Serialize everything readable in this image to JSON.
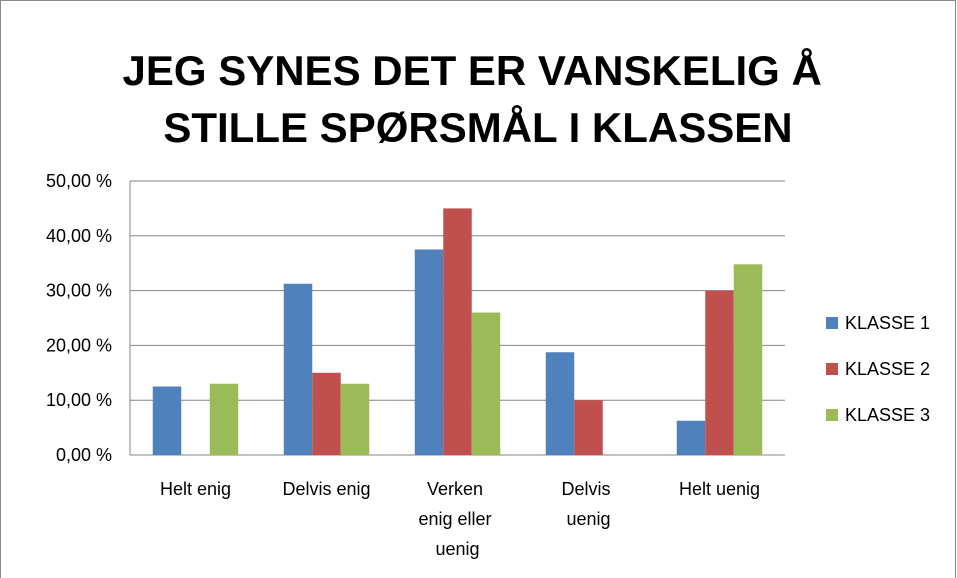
{
  "chart_data": {
    "type": "bar",
    "title": "JEG SYNES DET ER VANSKELIG Å STILLE SPØRSMÅL I KLASSEN",
    "categories": [
      "Helt enig",
      "Delvis enig",
      "Verken enig eller uenig",
      "Delvis uenig",
      "Helt uenig"
    ],
    "series": [
      {
        "name": "KLASSE 1",
        "color": "#4f81bd",
        "values": [
          12.5,
          31.25,
          37.5,
          18.75,
          6.25
        ]
      },
      {
        "name": "KLASSE 2",
        "color": "#c0504d",
        "values": [
          0,
          15,
          45,
          10,
          30
        ]
      },
      {
        "name": "KLASSE 3",
        "color": "#9bbb59",
        "values": [
          13,
          13,
          26,
          0,
          34.8
        ]
      }
    ],
    "ylim": [
      0,
      50
    ],
    "yticks": [
      {
        "value": 0,
        "label": "0,00 %"
      },
      {
        "value": 10,
        "label": "10,00 %"
      },
      {
        "value": 20,
        "label": "20,00 %"
      },
      {
        "value": 30,
        "label": "30,00 %"
      },
      {
        "value": 40,
        "label": "40,00 %"
      },
      {
        "value": 50,
        "label": "50,00 %"
      }
    ],
    "grid": true,
    "legend": "right"
  }
}
